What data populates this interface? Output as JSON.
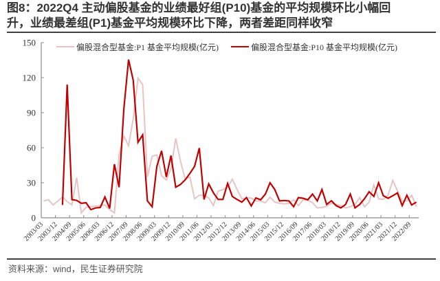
{
  "title": {
    "line1": "图8：2022Q4 主动偏股基金的业绩最好组(P10)基金的平均规模环比小幅回",
    "line2": "升，业绩最差组(P1)基金平均规模环比下降，两者差距同样收窄"
  },
  "source": "资料来源：wind，民生证券研究院",
  "legend": {
    "items": [
      {
        "label": "偏股混合型基金:P1 基金平均规模(亿元)",
        "color": "#e6c4c4"
      },
      {
        "label": "偏股混合型基金:P10 基金平均规模(亿元)",
        "color": "#c00000"
      }
    ]
  },
  "colors": {
    "axis": "#8c8c8c",
    "text": "#333333",
    "p1": "#e6c4c4",
    "p10": "#c00000"
  },
  "chart_data": {
    "type": "line",
    "title": "2022Q4 主动偏股基金的业绩最好组(P10)基金的平均规模环比小幅回升，业绩最差组(P1)基金平均规模环比下降，两者差距同样收窄",
    "xlabel": "",
    "ylabel": "",
    "ylim": [
      0,
      150
    ],
    "yticks": [
      0,
      30,
      60,
      90,
      120,
      150
    ],
    "grid": false,
    "legend_position": "top",
    "x_tick_labels": [
      "2003/03",
      "2003/12",
      "2004/09",
      "2005/06",
      "2006/03",
      "2006/12",
      "2007/09",
      "2008/06",
      "2009/03",
      "2009/12",
      "2010/09",
      "2011/06",
      "2012/03",
      "2012/12",
      "2013/09",
      "2014/06",
      "2015/03",
      "2015/12",
      "2016/09",
      "2017/06",
      "2018/03",
      "2018/12",
      "2019/09",
      "2020/06",
      "2021/03",
      "2021/12",
      "2022/09"
    ],
    "x_tick_every": 3,
    "x": [
      "2003/03",
      "2003/06",
      "2003/09",
      "2003/12",
      "2004/03",
      "2004/06",
      "2004/09",
      "2004/12",
      "2005/03",
      "2005/06",
      "2005/09",
      "2005/12",
      "2006/03",
      "2006/06",
      "2006/09",
      "2006/12",
      "2007/03",
      "2007/06",
      "2007/09",
      "2007/12",
      "2008/03",
      "2008/06",
      "2008/09",
      "2008/12",
      "2009/03",
      "2009/06",
      "2009/09",
      "2009/12",
      "2010/03",
      "2010/06",
      "2010/09",
      "2010/12",
      "2011/03",
      "2011/06",
      "2011/09",
      "2011/12",
      "2012/03",
      "2012/06",
      "2012/09",
      "2012/12",
      "2013/03",
      "2013/06",
      "2013/09",
      "2013/12",
      "2014/03",
      "2014/06",
      "2014/09",
      "2014/12",
      "2015/03",
      "2015/06",
      "2015/09",
      "2015/12",
      "2016/03",
      "2016/06",
      "2016/09",
      "2016/12",
      "2017/03",
      "2017/06",
      "2017/09",
      "2017/12",
      "2018/03",
      "2018/06",
      "2018/09",
      "2018/12",
      "2019/03",
      "2019/06",
      "2019/09",
      "2019/12",
      "2020/03",
      "2020/06",
      "2020/09",
      "2020/12",
      "2021/03",
      "2021/06",
      "2021/09",
      "2021/12",
      "2022/03",
      "2022/06",
      "2022/09",
      "2022/12"
    ],
    "series": [
      {
        "name": "偏股混合型基金:P1 基金平均规模(亿元)",
        "color": "#e6c4c4",
        "width": 2,
        "values": [
          14.3,
          15.5,
          11.0,
          14.3,
          17.8,
          13.9,
          11.0,
          34.4,
          4.1,
          9.0,
          9.6,
          10.0,
          10.4,
          11.0,
          7.0,
          4.1,
          54.0,
          70.0,
          61.6,
          85.0,
          119.7,
          113.8,
          35.0,
          52.7,
          53.7,
          36.0,
          32.5,
          42.0,
          68.0,
          48.8,
          33.0,
          35.0,
          16.3,
          19.3,
          19.3,
          17.0,
          10.4,
          22.8,
          24.2,
          26.2,
          33.0,
          24.2,
          16.3,
          17.0,
          17.0,
          14.4,
          14.4,
          12.8,
          17.7,
          13.4,
          12.4,
          11.8,
          12.4,
          15.4,
          10.4,
          15.4,
          15.0,
          13.0,
          8.5,
          8.9,
          9.8,
          12.4,
          11.4,
          10.4,
          8.5,
          9.5,
          11.4,
          17.3,
          9.5,
          13.4,
          28.2,
          16.3,
          15.7,
          19.3,
          32.0,
          23.2,
          14.4,
          14.4,
          19.3,
          9.5
        ]
      },
      {
        "name": "偏股混合型基金:P10 基金平均规模(亿元)",
        "color": "#c00000",
        "width": 2.2,
        "values": [
          null,
          null,
          null,
          null,
          11.0,
          114.0,
          15.5,
          14.9,
          12.4,
          12.9,
          7.0,
          8.4,
          8.8,
          17.8,
          8.0,
          45.9,
          26.2,
          93.0,
          135.5,
          117.7,
          64.6,
          71.0,
          14.4,
          9.5,
          44.0,
          57.3,
          35.0,
          53.3,
          26.2,
          28.5,
          32.5,
          38.0,
          44.0,
          59.7,
          15.7,
          29.0,
          21.3,
          15.7,
          15.7,
          29.5,
          18.3,
          15.7,
          13.4,
          17.3,
          10.2,
          17.0,
          15.4,
          20.3,
          30.0,
          24.2,
          14.4,
          14.8,
          14.4,
          9.5,
          17.3,
          16.7,
          15.4,
          20.3,
          14.4,
          24.2,
          11.4,
          14.6,
          10.4,
          8.5,
          11.4,
          20.3,
          8.5,
          11.4,
          16.3,
          22.3,
          18.3,
          30.0,
          18.9,
          16.7,
          18.9,
          21.3,
          10.4,
          19.3,
          11.0,
          13.4
        ]
      }
    ]
  }
}
